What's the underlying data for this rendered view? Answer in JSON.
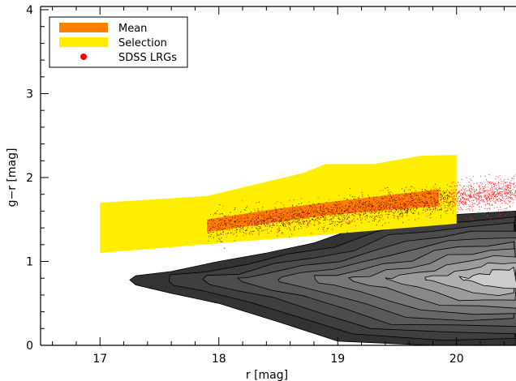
{
  "chart_data": {
    "type": "scatter",
    "title": "",
    "xlabel": "r [mag]",
    "ylabel": "g−r [mag]",
    "xlim": [
      16.5,
      20.5
    ],
    "ylim": [
      0,
      4
    ],
    "xticks": [
      "17",
      "18",
      "19",
      "20"
    ],
    "yticks": [
      "0",
      "1",
      "2",
      "3",
      "4"
    ],
    "grid": false,
    "legend_position": "top-left",
    "legend": [
      {
        "label": "Mean",
        "color": "#ff8000",
        "marker": "band"
      },
      {
        "label": "Selection",
        "color": "#ffee00",
        "marker": "band"
      },
      {
        "label": "SDSS LRGs",
        "color": "#ff0000",
        "marker": "dot"
      }
    ],
    "selection_region": {
      "lower": [
        [
          17.0,
          1.1
        ],
        [
          18.9,
          1.32
        ],
        [
          20.0,
          1.45
        ]
      ],
      "upper": [
        [
          17.0,
          1.7
        ],
        [
          17.9,
          1.78
        ],
        [
          18.7,
          2.05
        ],
        [
          18.9,
          2.16
        ],
        [
          19.3,
          2.16
        ],
        [
          19.7,
          2.26
        ],
        [
          20.0,
          2.27
        ]
      ]
    },
    "mean_band": {
      "lower": [
        [
          17.9,
          1.35
        ],
        [
          18.9,
          1.55
        ],
        [
          19.85,
          1.66
        ]
      ],
      "upper": [
        [
          17.9,
          1.5
        ],
        [
          18.5,
          1.63
        ],
        [
          19.0,
          1.72
        ],
        [
          19.85,
          1.86
        ]
      ]
    },
    "density_contours": {
      "levels": 9,
      "peak": [
        20.5,
        0.8
      ],
      "outer_boundary": [
        [
          17.25,
          0.78
        ],
        [
          17.3,
          0.83
        ],
        [
          17.6,
          0.88
        ],
        [
          18.0,
          1.0
        ],
        [
          18.4,
          1.1
        ],
        [
          18.8,
          1.22
        ],
        [
          19.2,
          1.42
        ],
        [
          19.6,
          1.5
        ],
        [
          20.0,
          1.56
        ],
        [
          20.5,
          1.6
        ],
        [
          20.5,
          0.0
        ],
        [
          19.8,
          0.0
        ],
        [
          19.0,
          0.05
        ],
        [
          18.5,
          0.28
        ],
        [
          18.0,
          0.5
        ],
        [
          17.6,
          0.62
        ],
        [
          17.3,
          0.72
        ]
      ]
    },
    "scatter_points": {
      "name": "SDSS LRGs",
      "count": 2600,
      "x_range": [
        17.9,
        20.5
      ],
      "trend_at_x18": 1.42,
      "trend_at_x20": 1.76,
      "scatter_sigma": 0.08
    }
  }
}
